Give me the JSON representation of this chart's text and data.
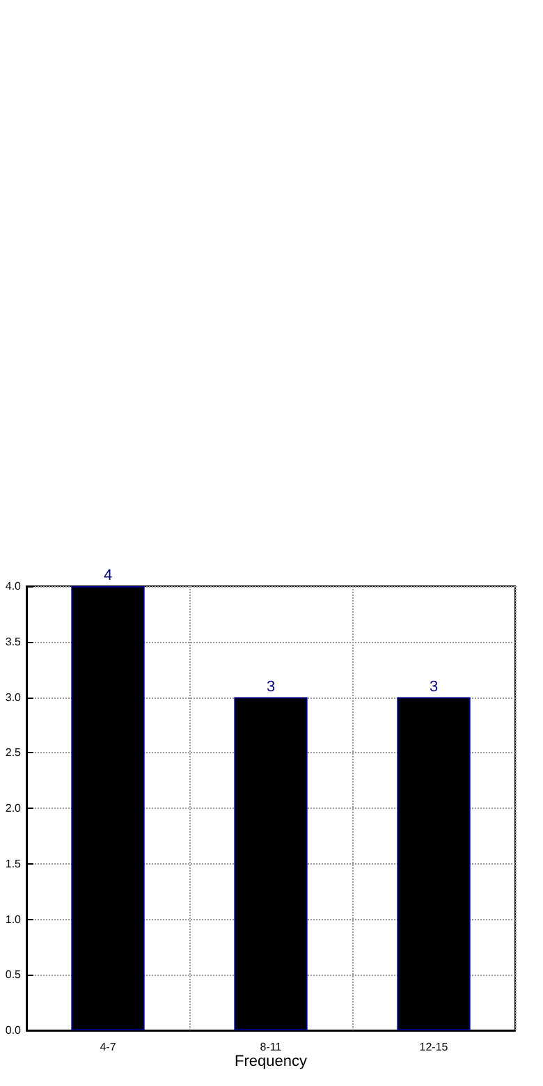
{
  "chart_data": {
    "type": "bar",
    "xlabel": "Frequency",
    "categories": [
      "4-7",
      "8-11",
      "12-15"
    ],
    "values": [
      4,
      3,
      3
    ],
    "color": "#ccccе6",
    "ylim": [
      0,
      4
    ],
    "yticks": [
      {
        "value": 0,
        "label": "0.0"
      },
      0.5,
      {
        "value": 1,
        "label": "1.0"
      },
      1.5,
      {
        "value": 2,
        "label": "2.0"
      },
      2.5,
      {
        "value": 3,
        "label": "3.0"
      },
      3.5,
      {
        "value": 4,
        "label": "4.0"
      }
    ],
    "grid": true,
    "data_labels": true
  }
}
